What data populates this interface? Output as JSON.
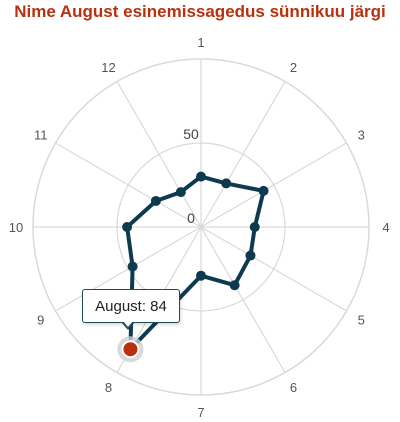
{
  "title": "Nime August esinemissagedus sünnikuu järgi",
  "chart_data": {
    "type": "line",
    "polar": true,
    "categories": [
      "1",
      "2",
      "3",
      "4",
      "5",
      "6",
      "7",
      "8",
      "9",
      "10",
      "11",
      "12"
    ],
    "series": [
      {
        "name": "August",
        "values": [
          30,
          30,
          43,
          32,
          34,
          40,
          29,
          84,
          47,
          44,
          31,
          24
        ]
      }
    ],
    "radial_ticks": [
      0,
      50
    ],
    "ylim": [
      0,
      100
    ],
    "grid": true
  },
  "tooltip": {
    "text": "August: 84",
    "category_index": 7
  },
  "colors": {
    "title": "#B9300E",
    "series": "#0E3A4F",
    "highlight": "#B9300E",
    "grid": "#d9d9d9"
  }
}
